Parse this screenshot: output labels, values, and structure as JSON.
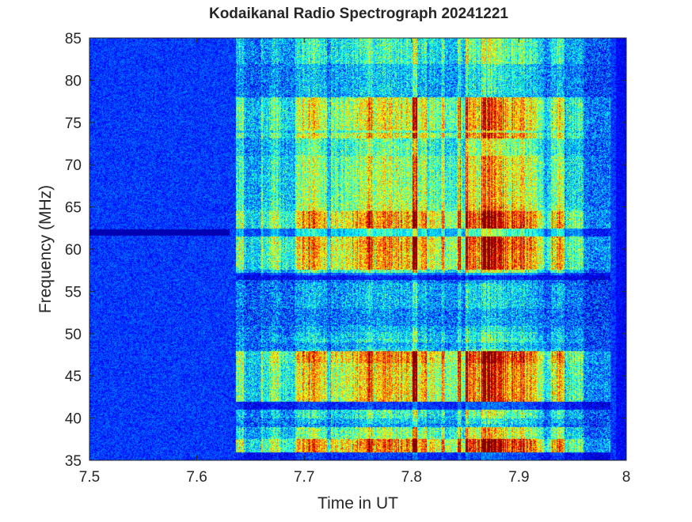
{
  "chart_data": {
    "type": "heatmap",
    "title": "Kodaikanal Radio Spectrograph  20241221",
    "xlabel": "Time in UT",
    "ylabel": "Frequency (MHz)",
    "xlim": [
      7.5,
      8.0
    ],
    "ylim": [
      35,
      85
    ],
    "xticks": [
      "7.5",
      "7.6",
      "7.7",
      "7.8",
      "7.9",
      "8"
    ],
    "yticks": [
      "35",
      "40",
      "45",
      "50",
      "55",
      "60",
      "65",
      "70",
      "75",
      "80",
      "85"
    ],
    "colormap": "jet",
    "grid": false,
    "legend": "none",
    "colors": {
      "axis": "#262626",
      "background": "#ffffff",
      "low": "#00008f",
      "high": "#800000"
    },
    "features": {
      "quiet_end_ut": 7.636,
      "burst_start_ut": 7.636,
      "burst_peak_ut": [
        7.77,
        7.855
      ],
      "burst_end_ut": 7.96,
      "late_activity_end_ut": 7.985,
      "strong_bands_mhz": [
        [
          57,
          78
        ],
        [
          42,
          48
        ],
        [
          36,
          39
        ]
      ],
      "weak_bands_mhz": [
        [
          53,
          56
        ],
        [
          49,
          51
        ],
        [
          40,
          41
        ],
        [
          82,
          85
        ]
      ],
      "dark_lines_mhz": [
        62.0,
        56.8,
        41.5,
        35.5
      ],
      "quiet_feature": {
        "ut": [
          7.5,
          7.63
        ],
        "mhz": 62.0
      }
    }
  }
}
